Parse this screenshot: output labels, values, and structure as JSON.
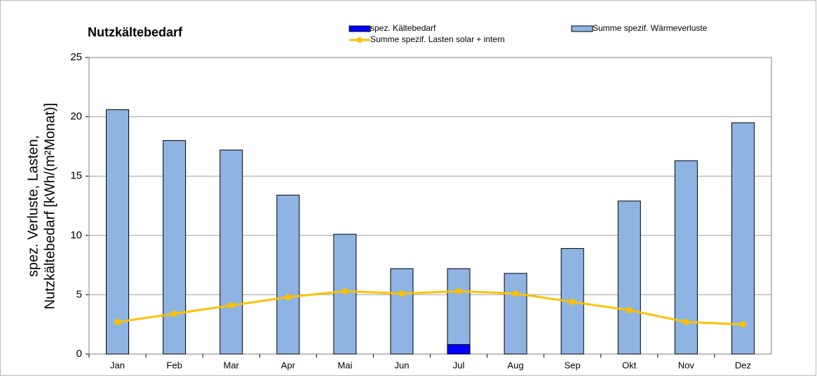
{
  "chart_data": {
    "type": "bar",
    "title": "Nutzkältebedarf",
    "ylabel": [
      "spez. Verluste, Lasten,",
      "Nutzkältebedarf [kWh/(m²Monat)]"
    ],
    "categories": [
      "Jan",
      "Feb",
      "Mar",
      "Apr",
      "Mai",
      "Jun",
      "Jul",
      "Aug",
      "Sep",
      "Okt",
      "Nov",
      "Dez"
    ],
    "series": [
      {
        "name": "Summe spezif. Wärmeverluste",
        "type": "bar",
        "color": "#8eb4e3",
        "values": [
          20.6,
          18.0,
          17.2,
          13.4,
          10.1,
          7.2,
          7.2,
          6.8,
          8.9,
          12.9,
          16.3,
          19.5
        ]
      },
      {
        "name": "spez. Kältebedarf",
        "type": "bar",
        "color": "#0000ff",
        "values": [
          0,
          0,
          0,
          0,
          0,
          0,
          0.8,
          0,
          0,
          0,
          0,
          0
        ]
      },
      {
        "name": "Summe spezif. Lasten solar + intern",
        "type": "line",
        "color": "#ffc000",
        "values": [
          2.7,
          3.4,
          4.1,
          4.8,
          5.3,
          5.1,
          5.3,
          5.1,
          4.4,
          3.7,
          2.7,
          2.5
        ]
      }
    ],
    "ylim": [
      0,
      25
    ],
    "yticks": [
      0,
      5,
      10,
      15,
      20,
      25
    ],
    "grid": true
  }
}
